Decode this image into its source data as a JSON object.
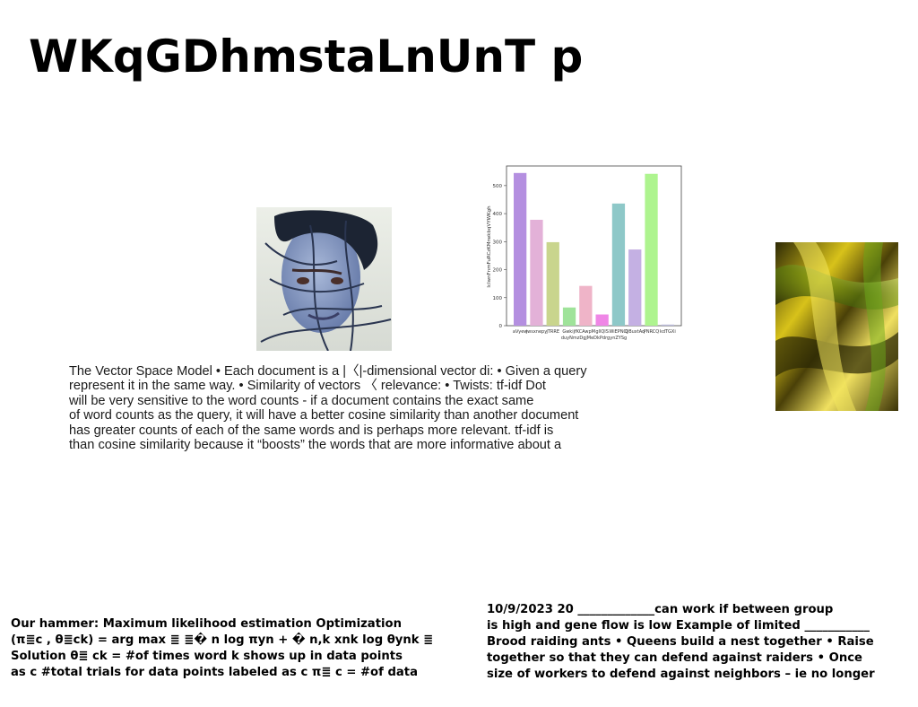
{
  "slide": {
    "title": "WKqGDhmstaLnUnT p"
  },
  "body_paragraph": {
    "lines": [
      "The Vector Space Model • Each document is a |〈|-dimensional vector di: • Given a query",
      "represent it in the same way. • Similarity of vectors 〈 relevance: • Twists:  tf-idf Dot",
      "will be very sensitive to the word counts - if a document contains the exact same",
      "of word counts as the query, it will have a better cosine similarity than another document",
      "has greater counts of each of the same words and is perhaps more relevant. tf-idf is",
      "than cosine similarity because it “boosts” the words that are more informative about a"
    ]
  },
  "bottom_left": {
    "lines": [
      "Our hammer: Maximum likelihood estimation Optimization",
      "(π≣c , θ≣ck) = arg max ≣ ≣� n log πyn + � n,k xnk log θynk ≣",
      "Solution θ≣ ck = #of times word k shows up in data points",
      "as c #total trials for data points labeled as c π≣ c = #of data"
    ]
  },
  "bottom_right": {
    "lines": [
      "10/9/2023 20 _____________can work if between group",
      "is high and gene flow is low Example of limited ___________",
      "Brood raiding ants • Queens build a nest together • Raise",
      "together so that they can defend against raiders • Once",
      "size of workers to defend against neighbors – ie no longer"
    ]
  },
  "chart_data": {
    "type": "bar",
    "ylabel": "lcIwnFnmFuRCzKMrwkbqVYWKgh",
    "ylim": [
      0,
      570
    ],
    "yticks": [
      0,
      100,
      200,
      300,
      400,
      500
    ],
    "categories": [
      "aVyew",
      "jwsxnepyE",
      "tJRRE",
      "DwkIjfRV",
      "VKCAwpM",
      "gllQS",
      "OWWJEP8",
      "QBuxtAq",
      "PNRCQ",
      "kdTGXi"
    ],
    "tick_labels_row1": [
      "aVyew",
      "jwsxnepy",
      "jTRRE",
      "Gwkijf",
      "KCAwpM",
      "gllQIS",
      "WiEPNCj",
      "QBuxtAq",
      "PNRCQ",
      "kdTGXi"
    ],
    "tick_labels_row2": [
      "duyNmzDgjMeDkPdrgynZYSg"
    ],
    "values": [
      545,
      378,
      298,
      65,
      142,
      40,
      436,
      272,
      542,
      4
    ],
    "colors": [
      "#b48fe0",
      "#e3b1d8",
      "#c9d58d",
      "#9fe39a",
      "#efb4c8",
      "#ef86e6",
      "#8ec8c8",
      "#c4b0e3",
      "#aef48f",
      "#b8b8d8"
    ]
  },
  "images": {
    "face_image_icon": "portrait-photo",
    "gold_image_icon": "gold-fabric-texture"
  }
}
